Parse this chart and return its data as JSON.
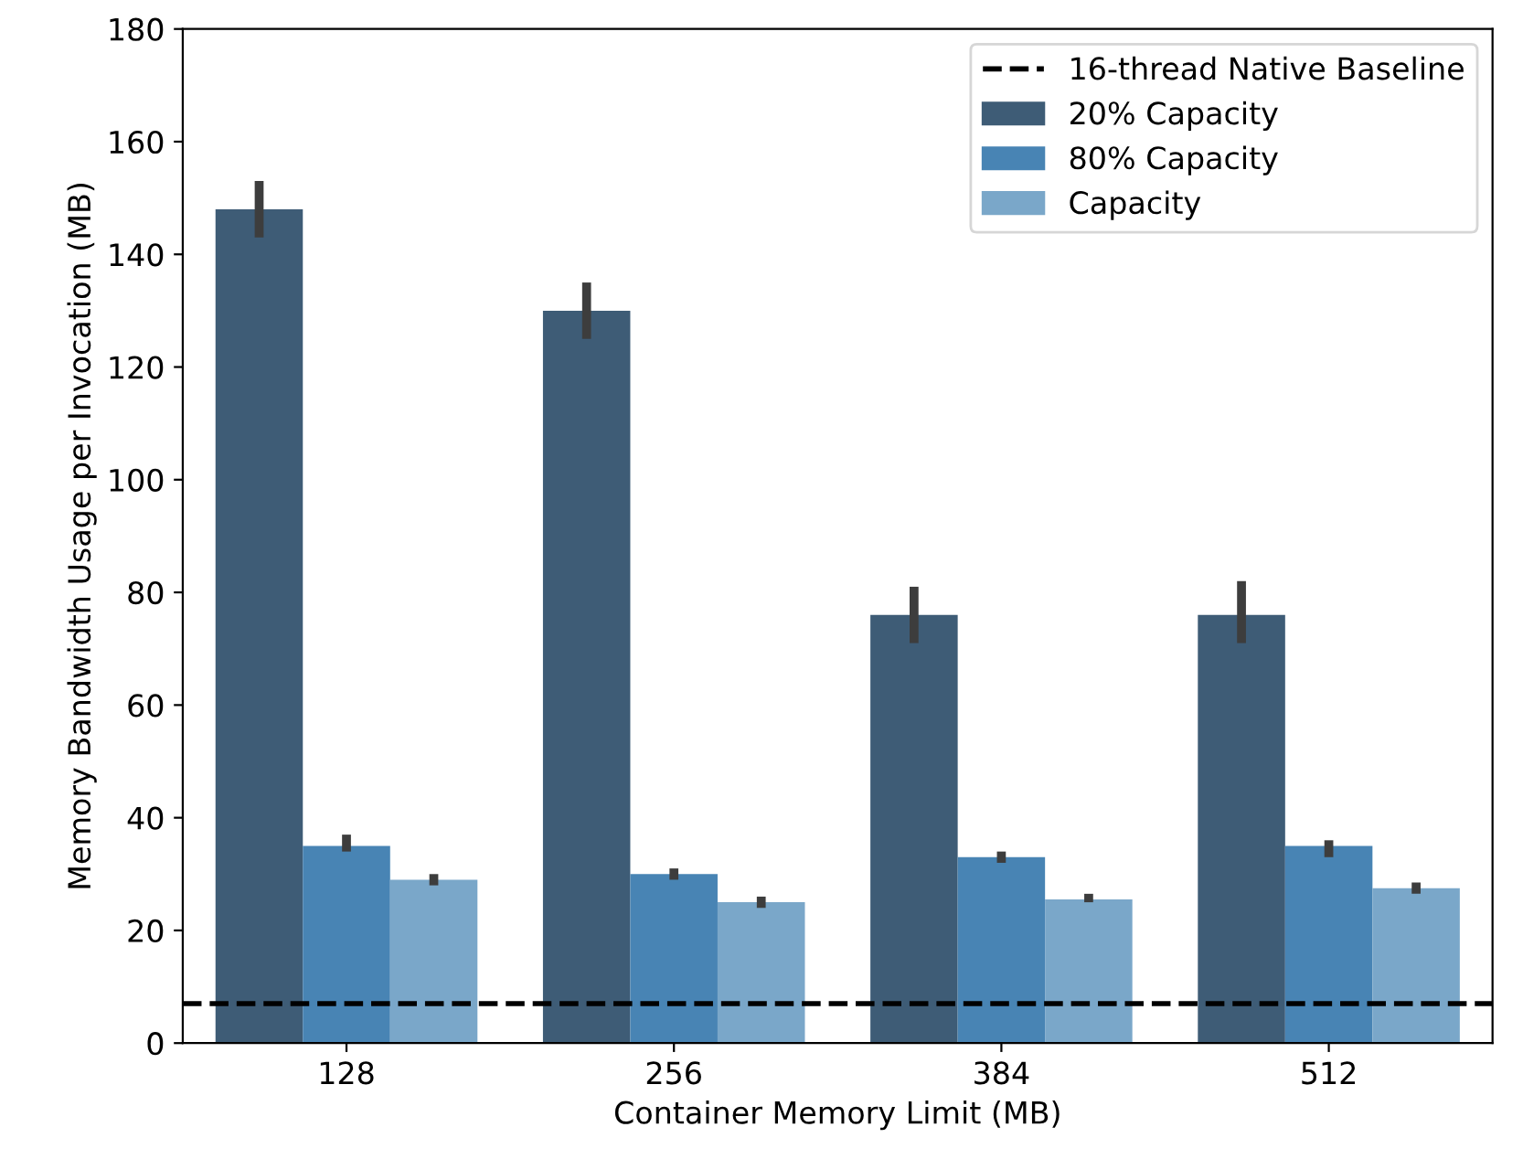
{
  "chart_data": {
    "type": "bar",
    "xlabel": "Container Memory Limit (MB)",
    "ylabel": "Memory Bandwidth Usage per Invocation (MB)",
    "categories": [
      "128",
      "256",
      "384",
      "512"
    ],
    "series": [
      {
        "name": "20% Capacity",
        "color": "#3e5c76",
        "values": [
          148,
          130,
          76,
          76
        ],
        "errors": [
          [
            143,
            153
          ],
          [
            125,
            135
          ],
          [
            71,
            81
          ],
          [
            71,
            82
          ]
        ]
      },
      {
        "name": "80% Capacity",
        "color": "#4884b4",
        "values": [
          35,
          30,
          33,
          35
        ],
        "errors": [
          [
            34,
            37
          ],
          [
            29,
            31
          ],
          [
            32,
            34
          ],
          [
            33,
            36
          ]
        ]
      },
      {
        "name": "Capacity",
        "color": "#7aa7c9",
        "values": [
          29,
          25,
          25.5,
          27.5
        ],
        "errors": [
          [
            28,
            30
          ],
          [
            24,
            26
          ],
          [
            25,
            26.5
          ],
          [
            26.5,
            28.5
          ]
        ]
      }
    ],
    "ref_lines": [
      {
        "axis": "y",
        "value": 7,
        "label": "16-thread Native Baseline",
        "color": "#000000",
        "line_style": "dashed"
      }
    ],
    "ylim": [
      0,
      180
    ],
    "yticks": [
      0,
      20,
      40,
      60,
      80,
      100,
      120,
      140,
      160,
      180
    ],
    "grid": false,
    "legend": "top right"
  }
}
